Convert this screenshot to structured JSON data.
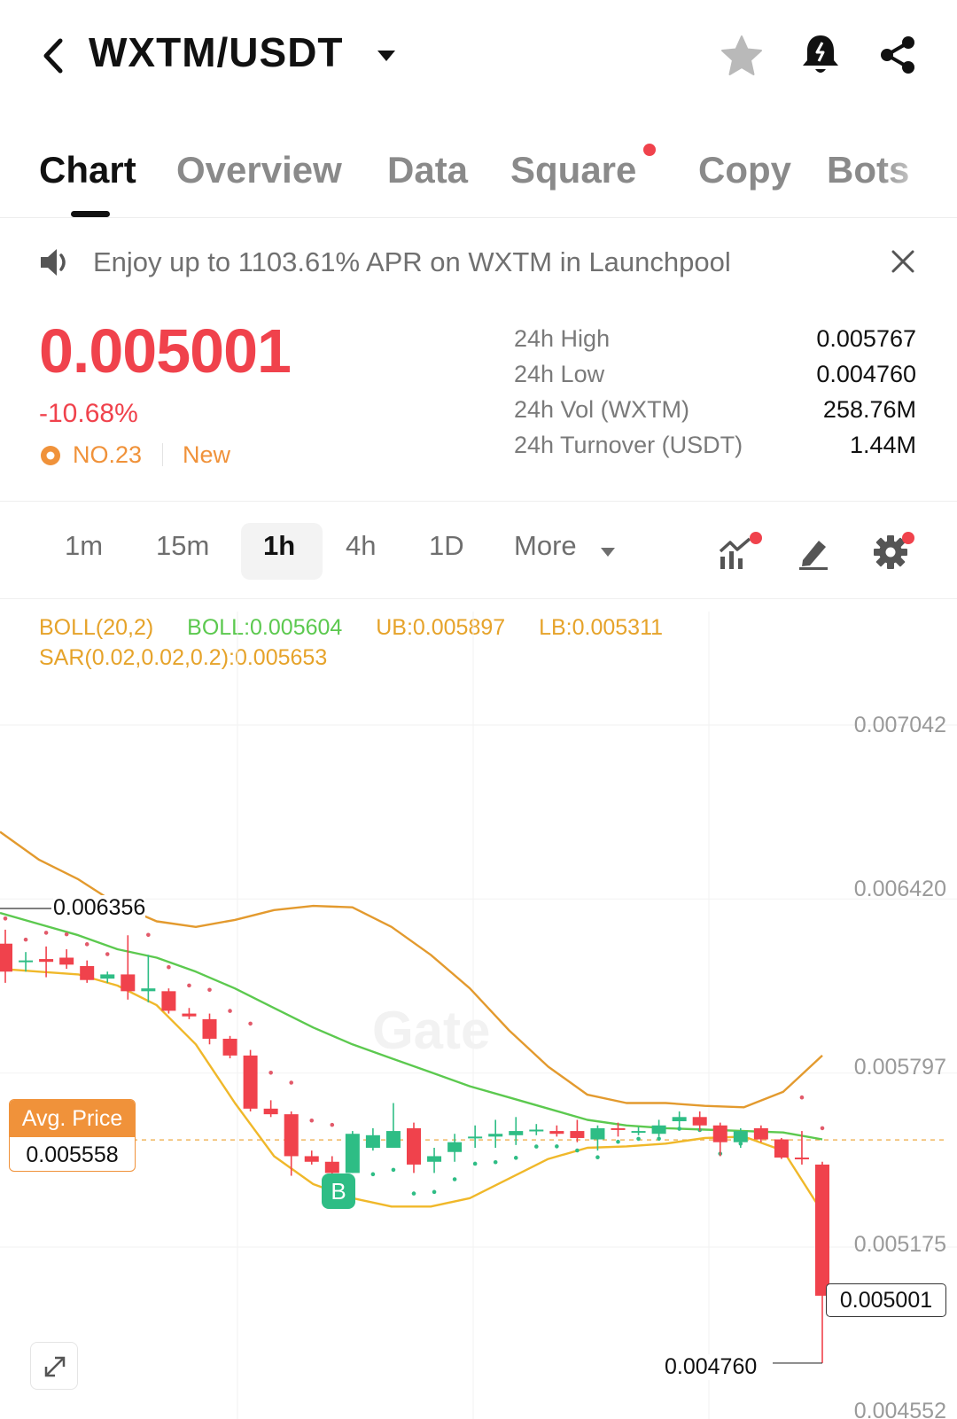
{
  "header": {
    "pair": "WXTM/USDT"
  },
  "tabs": [
    {
      "label": "Chart",
      "active": true
    },
    {
      "label": "Overview"
    },
    {
      "label": "Data"
    },
    {
      "label": "Square",
      "has_dot": true
    },
    {
      "label": "Copy"
    },
    {
      "label": "Bots"
    }
  ],
  "banner": {
    "text": "Enjoy up to 1103.61% APR on WXTM in Launchpool"
  },
  "price": {
    "last": "0.005001",
    "change": "-10.68%",
    "rank": "NO.23",
    "tag": "New"
  },
  "stats": [
    {
      "label": "24h High",
      "value": "0.005767"
    },
    {
      "label": "24h Low",
      "value": "0.004760"
    },
    {
      "label": "24h Vol (WXTM)",
      "value": "258.76M"
    },
    {
      "label": "24h Turnover (USDT)",
      "value": "1.44M"
    }
  ],
  "timeframes": {
    "items": [
      "1m",
      "15m",
      "1h",
      "4h",
      "1D"
    ],
    "active": "1h",
    "more_label": "More"
  },
  "legend": {
    "boll_name": "BOLL(20,2)",
    "boll_mid": "BOLL:0.005604",
    "boll_ub": "UB:0.005897",
    "boll_lb": "LB:0.005311",
    "sar": "SAR(0.02,0.02,0.2):0.005653"
  },
  "colors": {
    "up": "#2ebd85",
    "down": "#f0424c",
    "boll_mid": "#5cc94f",
    "boll_band": "#e6a32a",
    "accent": "#f0923a"
  },
  "chart_data": {
    "type": "candlestick",
    "interval": "1h",
    "y_axis_ticks": [
      "0.007042",
      "0.006420",
      "0.005797",
      "0.005175",
      "0.004552"
    ],
    "ylim": [
      0.00452,
      0.00715
    ],
    "avg_price_label": "Avg. Price",
    "avg_price": "0.005558",
    "annotations": {
      "high_marker": "0.006356",
      "low_marker": "0.004760",
      "last_price": "0.005001",
      "buy_marker": "B"
    },
    "candles": [
      {
        "o": 0.00626,
        "h": 0.00631,
        "l": 0.00612,
        "c": 0.00616
      },
      {
        "o": 0.0062,
        "h": 0.00623,
        "l": 0.00616,
        "c": 0.0062
      },
      {
        "o": 0.006205,
        "h": 0.00625,
        "l": 0.00614,
        "c": 0.006195
      },
      {
        "o": 0.00621,
        "h": 0.00624,
        "l": 0.00617,
        "c": 0.006185
      },
      {
        "o": 0.00618,
        "h": 0.0062,
        "l": 0.00612,
        "c": 0.00613
      },
      {
        "o": 0.006135,
        "h": 0.00616,
        "l": 0.00612,
        "c": 0.00615
      },
      {
        "o": 0.00615,
        "h": 0.00629,
        "l": 0.00606,
        "c": 0.00609
      },
      {
        "o": 0.00609,
        "h": 0.00622,
        "l": 0.00605,
        "c": 0.0061
      },
      {
        "o": 0.00609,
        "h": 0.0061,
        "l": 0.00601,
        "c": 0.00602
      },
      {
        "o": 0.00601,
        "h": 0.00603,
        "l": 0.00599,
        "c": 0.006
      },
      {
        "o": 0.00599,
        "h": 0.00601,
        "l": 0.0059,
        "c": 0.00592
      },
      {
        "o": 0.00592,
        "h": 0.00593,
        "l": 0.00585,
        "c": 0.00586
      },
      {
        "o": 0.00586,
        "h": 0.00588,
        "l": 0.00566,
        "c": 0.00567
      },
      {
        "o": 0.00567,
        "h": 0.0057,
        "l": 0.00564,
        "c": 0.00565
      },
      {
        "o": 0.00565,
        "h": 0.00566,
        "l": 0.00543,
        "c": 0.0055
      },
      {
        "o": 0.0055,
        "h": 0.00552,
        "l": 0.00547,
        "c": 0.00548
      },
      {
        "o": 0.00548,
        "h": 0.0055,
        "l": 0.00542,
        "c": 0.00544
      },
      {
        "o": 0.00544,
        "h": 0.00559,
        "l": 0.00544,
        "c": 0.00558
      },
      {
        "o": 0.00553,
        "h": 0.0056,
        "l": 0.00552,
        "c": 0.005575
      },
      {
        "o": 0.00553,
        "h": 0.00569,
        "l": 0.00553,
        "c": 0.00559
      },
      {
        "o": 0.0056,
        "h": 0.00562,
        "l": 0.00544,
        "c": 0.00547
      },
      {
        "o": 0.00548,
        "h": 0.00553,
        "l": 0.00544,
        "c": 0.0055
      },
      {
        "o": 0.005515,
        "h": 0.00558,
        "l": 0.00548,
        "c": 0.00555
      },
      {
        "o": 0.00557,
        "h": 0.00561,
        "l": 0.00553,
        "c": 0.00557
      },
      {
        "o": 0.00557,
        "h": 0.00563,
        "l": 0.00553,
        "c": 0.00558
      },
      {
        "o": 0.005575,
        "h": 0.00564,
        "l": 0.00554,
        "c": 0.00559
      },
      {
        "o": 0.005595,
        "h": 0.005615,
        "l": 0.005575,
        "c": 0.005595
      },
      {
        "o": 0.00559,
        "h": 0.00561,
        "l": 0.00557,
        "c": 0.00558
      },
      {
        "o": 0.00559,
        "h": 0.00563,
        "l": 0.00555,
        "c": 0.005565
      },
      {
        "o": 0.00556,
        "h": 0.00561,
        "l": 0.00552,
        "c": 0.0056
      },
      {
        "o": 0.0056,
        "h": 0.00562,
        "l": 0.00557,
        "c": 0.005595
      },
      {
        "o": 0.00559,
        "h": 0.005605,
        "l": 0.005575,
        "c": 0.00559
      },
      {
        "o": 0.00558,
        "h": 0.00563,
        "l": 0.00557,
        "c": 0.00561
      },
      {
        "o": 0.005625,
        "h": 0.00566,
        "l": 0.0056,
        "c": 0.00564
      },
      {
        "o": 0.00564,
        "h": 0.00566,
        "l": 0.00559,
        "c": 0.00561
      },
      {
        "o": 0.00561,
        "h": 0.00562,
        "l": 0.0055,
        "c": 0.00555
      },
      {
        "o": 0.00555,
        "h": 0.0056,
        "l": 0.00553,
        "c": 0.00559
      },
      {
        "o": 0.0056,
        "h": 0.00561,
        "l": 0.00555,
        "c": 0.00556
      },
      {
        "o": 0.00556,
        "h": 0.005565,
        "l": 0.00549,
        "c": 0.005495
      },
      {
        "o": 0.005495,
        "h": 0.00559,
        "l": 0.00547,
        "c": 0.00549
      },
      {
        "o": 0.00547,
        "h": 0.00548,
        "l": 0.00476,
        "c": 0.005001
      }
    ],
    "boll_upper": [
      0.00666,
      0.00656,
      0.00649,
      0.0064,
      0.00634,
      0.00632,
      0.006345,
      0.00638,
      0.006395,
      0.00639,
      0.00632,
      0.00622,
      0.0061,
      0.00595,
      0.00582,
      0.00572,
      0.00569,
      0.00569,
      0.00568,
      0.005675,
      0.00573,
      0.00586
    ],
    "boll_mid": [
      0.00637,
      0.00633,
      0.00629,
      0.00624,
      0.00621,
      0.00616,
      0.0061,
      0.00603,
      0.00596,
      0.0059,
      0.00585,
      0.0058,
      0.00575,
      0.00571,
      0.00567,
      0.00563,
      0.00561,
      0.0056,
      0.005595,
      0.00559,
      0.005585,
      0.00556
    ],
    "boll_lower": [
      0.00617,
      0.00616,
      0.00615,
      0.00611,
      0.00604,
      0.0059,
      0.00569,
      0.0055,
      0.0054,
      0.00535,
      0.00532,
      0.00532,
      0.00535,
      0.00542,
      0.00549,
      0.00553,
      0.005535,
      0.005545,
      0.005565,
      0.00557,
      0.00552,
      0.0053
    ]
  }
}
